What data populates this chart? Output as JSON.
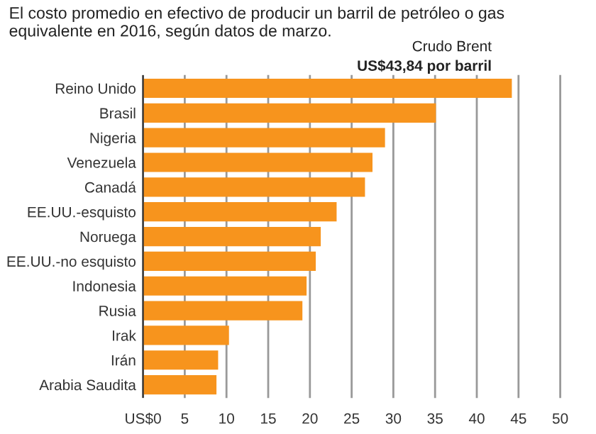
{
  "chart_data": {
    "type": "bar",
    "orientation": "horizontal",
    "title": "El costo promedio en efectivo de producir un barril de petróleo o gas\nequivalente en 2016, según datos de marzo.",
    "categories": [
      "Reino Unido",
      "Brasil",
      "Nigeria",
      "Venezuela",
      "Canadá",
      "EE.UU.-esquisto",
      "Noruega",
      "EE.UU.-no esquisto",
      "Indonesia",
      "Rusia",
      "Irak",
      "Irán",
      "Arabia Saudita"
    ],
    "values": [
      44.2,
      35.1,
      29.0,
      27.5,
      26.6,
      23.2,
      21.3,
      20.7,
      19.6,
      19.1,
      10.3,
      9.0,
      8.8
    ],
    "color": "#f7941d",
    "xlim": [
      0,
      50
    ],
    "xticks": [
      {
        "value": 0,
        "label": "US$0"
      },
      5,
      10,
      15,
      20,
      25,
      30,
      35,
      40,
      45,
      50
    ],
    "grid": "x",
    "annotations": [
      "Crudo Brent",
      "US$43,84 por barril"
    ]
  }
}
